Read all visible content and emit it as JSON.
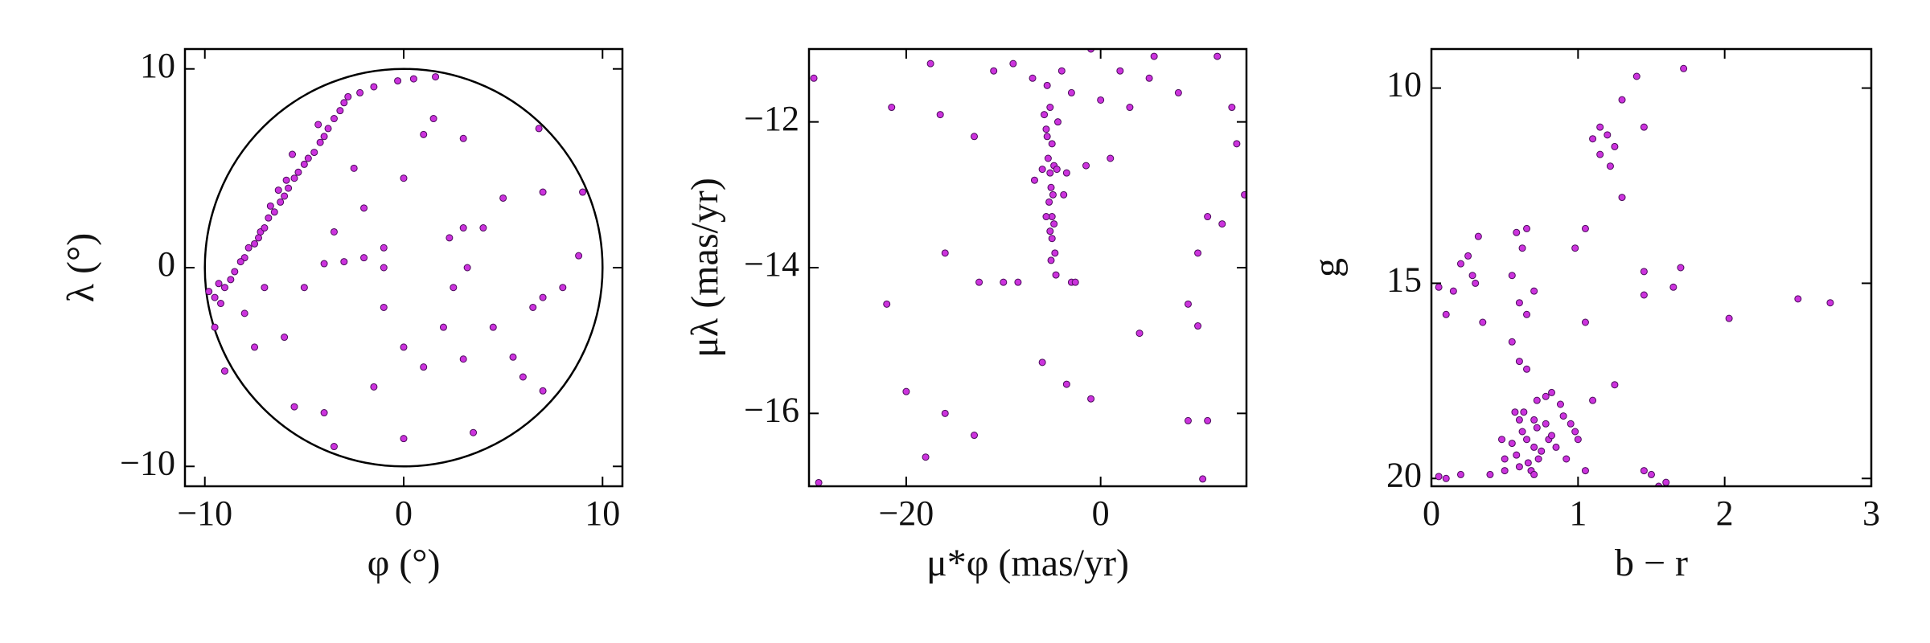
{
  "chart_data": [
    {
      "type": "scatter",
      "xlabel": "φ (°)",
      "ylabel": "λ (°)",
      "color": "#cc33dd",
      "xlim": [
        -11,
        11
      ],
      "ylim": [
        -11,
        11
      ],
      "xticks": [
        {
          "value": -10,
          "label": "−10"
        },
        0,
        10
      ],
      "yticks": [
        {
          "value": -10,
          "label": "−10"
        },
        0,
        10
      ],
      "x": [
        -9.8,
        -9.5,
        -9.2,
        -9.0,
        -8.7,
        -8.5,
        -8.0,
        -7.8,
        -7.5,
        -7.2,
        -7.0,
        -6.8,
        -6.5,
        -6.2,
        -6.0,
        -5.8,
        -5.5,
        -5.3,
        -5.0,
        -4.8,
        -4.5,
        -4.2,
        -4.0,
        -3.8,
        -3.5,
        -3.2,
        -3.0,
        -2.8,
        -2.2,
        -1.5,
        -5.6,
        -6.3,
        -7.3,
        -8.2,
        -9.3,
        -4.3,
        -5.9,
        -6.7,
        -9.5,
        -9,
        -7.5,
        -6,
        -5,
        -5.5,
        -4,
        -3.5,
        -1.5,
        -1,
        0,
        0,
        1,
        2,
        3,
        3.5,
        4.5,
        5.5,
        6,
        7,
        6.5,
        8,
        7,
        8.8,
        9,
        7,
        5,
        3,
        3.2,
        2.3,
        -1,
        -2,
        -1,
        -3,
        -4,
        -2,
        0,
        1,
        3,
        1.5,
        0.5,
        1.6,
        -0.3,
        -2.5,
        -7,
        -8,
        6.8,
        4,
        2.5,
        -3.5
      ],
      "values": [
        -1.2,
        -1.5,
        -1.8,
        -1.0,
        -0.6,
        -0.2,
        0.5,
        1.0,
        1.2,
        1.8,
        2.0,
        2.5,
        2.8,
        3.3,
        3.6,
        4.0,
        4.5,
        4.8,
        5.2,
        5.5,
        5.8,
        6.3,
        6.6,
        7.0,
        7.5,
        7.9,
        8.3,
        8.6,
        8.8,
        9.1,
        5.7,
        3.9,
        1.5,
        0.3,
        -0.8,
        7.2,
        4.4,
        3.1,
        -3.0,
        -5.2,
        -4,
        -3.5,
        -1,
        -7,
        -7.3,
        -9,
        -6,
        -2,
        -8.6,
        -4,
        -5,
        -3,
        -4.6,
        -8.3,
        -3,
        -4.5,
        -5.5,
        -6.2,
        -2,
        -1,
        -1.5,
        0.6,
        3.8,
        3.8,
        3.5,
        2,
        0,
        1.5,
        1,
        0.5,
        0,
        0.3,
        0.2,
        3,
        4.5,
        6.7,
        6.5,
        7.5,
        9.5,
        9.6,
        9.4,
        5,
        -1,
        -2.3,
        7,
        2,
        -1,
        1.8
      ]
    },
    {
      "type": "scatter",
      "xlabel": "μ*φ (mas/yr)",
      "ylabel": "μλ (mas/yr)",
      "color": "#cc33dd",
      "xlim": [
        -30,
        15
      ],
      "ylim": [
        -17,
        -11
      ],
      "xticks": [
        {
          "value": -20,
          "label": "−20"
        },
        0
      ],
      "yticks": [
        {
          "value": -16,
          "label": "−16"
        },
        {
          "value": -14,
          "label": "−14"
        },
        {
          "value": -12,
          "label": "−12"
        }
      ],
      "x": [
        -5.5,
        -5.2,
        -5.6,
        -5,
        -5.4,
        -4.8,
        -5.2,
        -4.5,
        -6,
        -5.1,
        -4.9,
        -5.3,
        -5,
        -4.8,
        -5.2,
        -5,
        -4.7,
        -5.1,
        -4.6,
        -5.5,
        -5.8,
        -4.4,
        -3.5,
        -6.8,
        -3.8,
        -5.6,
        -29.5,
        -29,
        -22,
        -20,
        -21.5,
        -18,
        -17.5,
        -16.5,
        -16,
        -16,
        -13,
        -13,
        -12.5,
        -11,
        -10,
        -9,
        -7,
        -6,
        -4,
        -3,
        -3.5,
        -1,
        -1.5,
        0,
        1,
        2,
        3,
        4,
        5.5,
        8,
        9,
        9,
        10,
        10,
        10.5,
        11,
        12,
        12.5,
        13.5,
        14,
        14.8,
        11,
        -3,
        -2.6,
        -8.5,
        -1,
        5
      ],
      "values": [
        -11.5,
        -11.8,
        -12.1,
        -12.3,
        -12.5,
        -12.6,
        -12.7,
        -12.65,
        -12.65,
        -12.9,
        -13.0,
        -13.1,
        -13.3,
        -13.4,
        -13.5,
        -13.6,
        -13.8,
        -13.9,
        -14.1,
        -12.2,
        -11.9,
        -12.0,
        -12.7,
        -12.8,
        -13.0,
        -13.3,
        -11.4,
        -16.95,
        -14.5,
        -15.7,
        -11.8,
        -16.6,
        -11.2,
        -11.9,
        -13.8,
        -16,
        -12.2,
        -16.3,
        -14.2,
        -11.3,
        -14.2,
        -11.2,
        -11.4,
        -15.3,
        -11.3,
        -11.6,
        -15.6,
        -15.8,
        -12.6,
        -11.7,
        -12.5,
        -11.3,
        -11.8,
        -14.9,
        -11.1,
        -11.6,
        -14.5,
        -16.1,
        -13.8,
        -14.8,
        -16.9,
        -16.1,
        -11.1,
        -13.4,
        -11.8,
        -12.3,
        -13,
        -13.3,
        -14.2,
        -14.2,
        -14.2,
        -11,
        -11.4
      ]
    },
    {
      "type": "scatter",
      "xlabel": "b − r",
      "ylabel": "g",
      "color": "#cc33dd",
      "xlim": [
        0,
        3
      ],
      "ylim": [
        20.2,
        9.0
      ],
      "xticks": [
        0,
        1,
        2,
        3
      ],
      "yticks": [
        10,
        15,
        20
      ],
      "x": [
        0.6,
        0.62,
        0.65,
        0.7,
        0.58,
        0.66,
        0.72,
        0.55,
        0.68,
        0.6,
        0.75,
        0.8,
        0.63,
        0.7,
        0.78,
        0.82,
        0.5,
        0.73,
        0.85,
        0.9,
        0.95,
        0.88,
        0.82,
        0.78,
        0.72,
        0.92,
        0.98,
        0.48,
        0.57,
        0.65,
        0.6,
        0.55,
        0.5,
        0.7,
        0.4,
        1.05,
        1.0,
        0.05,
        0.1,
        0.05,
        0.1,
        0.15,
        0.2,
        0.25,
        0.3,
        0.28,
        0.32,
        0.35,
        0.58,
        0.55,
        0.6,
        0.62,
        0.65,
        0.7,
        0.65,
        0.98,
        1.05,
        1.1,
        1.15,
        1.2,
        1.22,
        1.25,
        1.15,
        1.3,
        1.4,
        1.45,
        1.3,
        1.25,
        1.45,
        1.45,
        1.65,
        1.7,
        1.72,
        1.5,
        1.45,
        1.6,
        2.03,
        2.5,
        2.72,
        1.05,
        1.1,
        1.55,
        0.2
      ],
      "values": [
        18.5,
        18.8,
        19.0,
        19.2,
        19.4,
        19.6,
        18.7,
        19.1,
        19.8,
        19.7,
        19.3,
        19.0,
        18.3,
        18.5,
        18.6,
        18.9,
        19.5,
        19.5,
        19.2,
        18.4,
        18.6,
        18.1,
        17.8,
        17.9,
        18.0,
        19.5,
        18.8,
        19.0,
        18.3,
        17.2,
        17.0,
        16.5,
        19.8,
        19.9,
        19.9,
        19.8,
        19.0,
        19.95,
        20.0,
        15.1,
        15.8,
        15.2,
        14.5,
        14.3,
        15.0,
        14.8,
        13.8,
        16.0,
        13.7,
        14.8,
        15.5,
        14.1,
        15.8,
        15.2,
        13.6,
        14.1,
        16,
        11.3,
        11.7,
        11.2,
        12.0,
        11.5,
        11.0,
        10.3,
        9.7,
        11.0,
        12.8,
        17.6,
        14.7,
        15.3,
        15.1,
        14.6,
        9.5,
        19.9,
        19.8,
        20.1,
        15.9,
        15.4,
        15.5,
        13.6,
        18.0,
        20.2,
        19.9
      ]
    }
  ]
}
